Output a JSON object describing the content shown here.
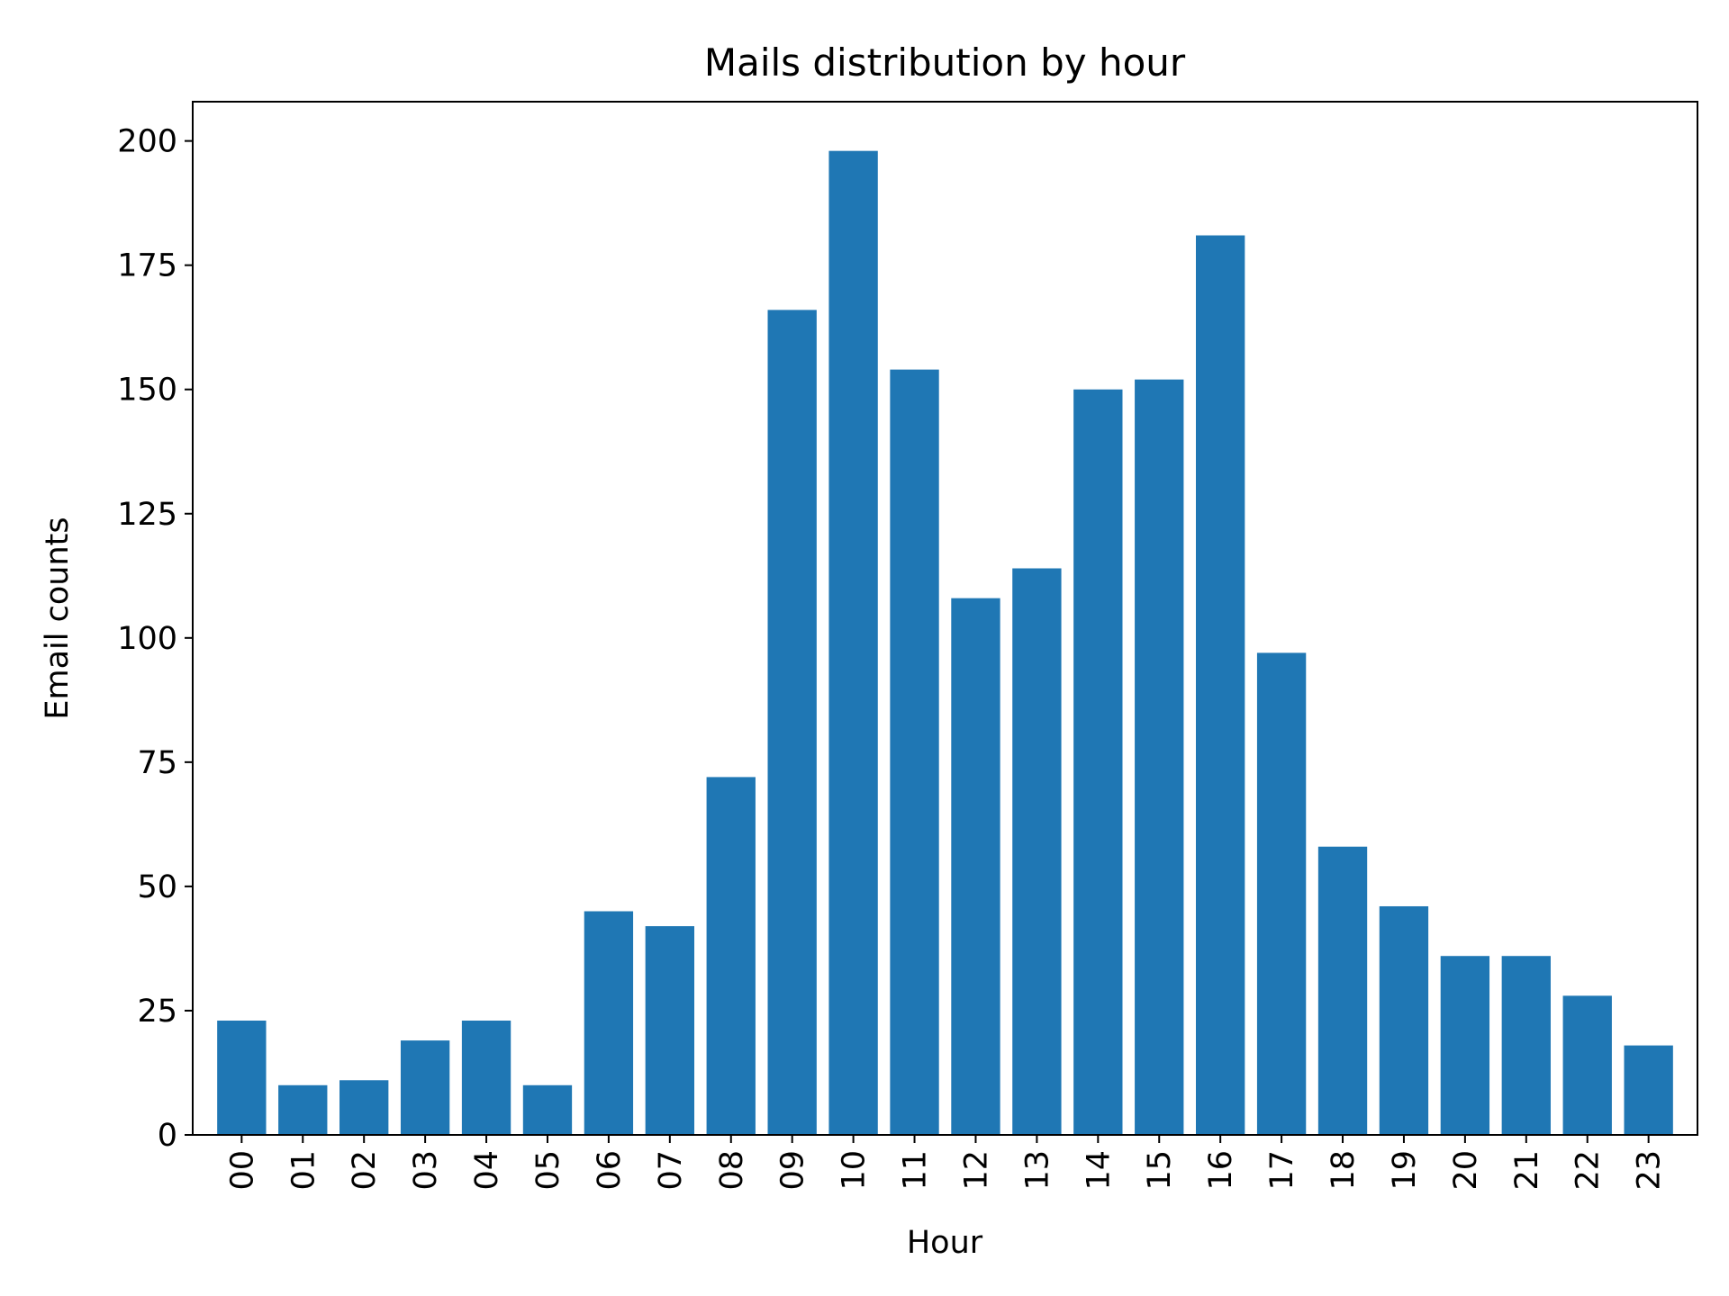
{
  "chart_data": {
    "type": "bar",
    "title": "Mails distribution by hour",
    "xlabel": "Hour",
    "ylabel": "Email counts",
    "categories": [
      "00",
      "01",
      "02",
      "03",
      "04",
      "05",
      "06",
      "07",
      "08",
      "09",
      "10",
      "11",
      "12",
      "13",
      "14",
      "15",
      "16",
      "17",
      "18",
      "19",
      "20",
      "21",
      "22",
      "23"
    ],
    "values": [
      23,
      10,
      11,
      19,
      23,
      10,
      45,
      42,
      72,
      166,
      198,
      154,
      108,
      114,
      150,
      152,
      181,
      97,
      58,
      46,
      36,
      36,
      28,
      18
    ],
    "ylim": [
      0,
      207.9
    ],
    "yticks": [
      0,
      25,
      50,
      75,
      100,
      125,
      150,
      175,
      200
    ],
    "grid": false,
    "legend": "none",
    "bar_color": "#1f77b4",
    "x_tick_rotation": "vertical"
  }
}
